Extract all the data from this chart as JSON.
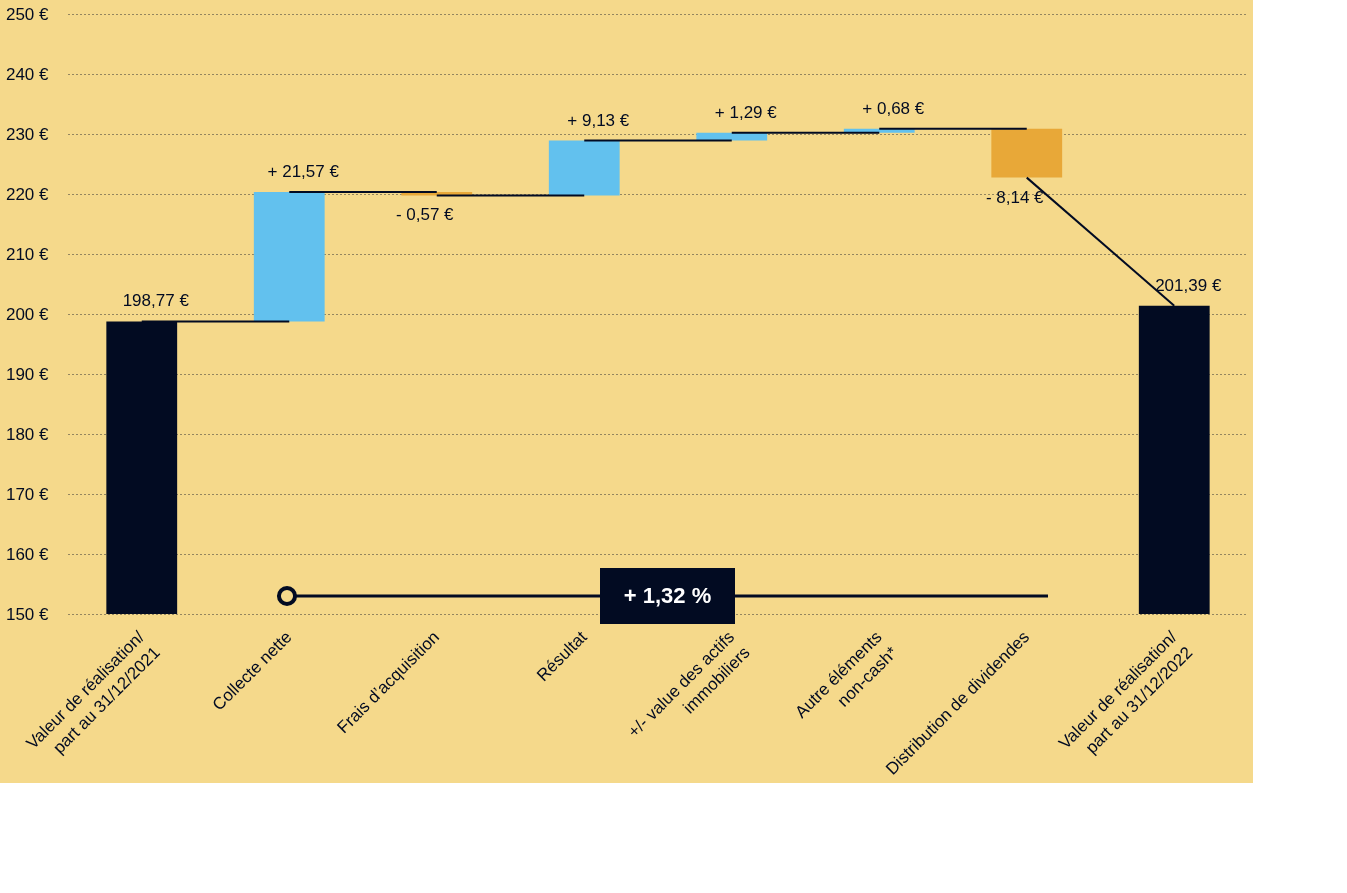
{
  "chart_data": {
    "type": "bar",
    "categories": [
      "Valeur de réalisation/\npart au 31/12/2021",
      "Collecte nette",
      "Frais d’acquisition",
      "Résultat",
      "+/- value des actifs\nimmobiliers",
      "Autre éléments\nnon-cash*",
      "Distribution de dividendes",
      "Valeur de réalisation/\npart au 31/12/2022"
    ],
    "values": [
      198.77,
      21.57,
      -0.57,
      9.13,
      1.29,
      0.68,
      -8.14,
      201.39
    ],
    "base": [
      null,
      198.77,
      220.34,
      219.77,
      228.9,
      230.19,
      230.87,
      null
    ],
    "colors": [
      "#020b22",
      "#62c1ee",
      "#e8a838",
      "#62c1ee",
      "#62c1ee",
      "#62c1ee",
      "#e8a838",
      "#020b22"
    ],
    "value_labels": [
      "198,77 €",
      "+ 21,57 €",
      "- 0,57 €",
      "+ 9,13 €",
      "+ 1,29 €",
      "+ 0,68 €",
      "- 8,14 €",
      "201,39 €"
    ],
    "ylim": [
      150,
      250
    ],
    "yticks": [
      {
        "value": 150,
        "label": "150 €"
      },
      {
        "value": 160,
        "label": "160 €"
      },
      {
        "value": 170,
        "label": "170 €"
      },
      {
        "value": 180,
        "label": "180 €"
      },
      {
        "value": 190,
        "label": "190 €"
      },
      {
        "value": 200,
        "label": "200 €"
      },
      {
        "value": 210,
        "label": "210 €"
      },
      {
        "value": 220,
        "label": "220 €"
      },
      {
        "value": 230,
        "label": "230 €"
      },
      {
        "value": 240,
        "label": "240 €"
      },
      {
        "value": 250,
        "label": "250 €"
      }
    ],
    "grid": "y",
    "annotations": [
      "+ 1,32 %"
    ]
  }
}
